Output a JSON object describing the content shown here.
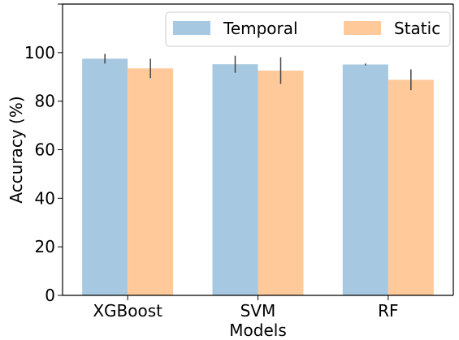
{
  "chart_data": {
    "type": "bar",
    "categories": [
      "XGBoost",
      "SVM",
      "RF"
    ],
    "series": [
      {
        "name": "Temporal",
        "values": [
          97.5,
          95.2,
          95.1
        ],
        "errors": [
          2.0,
          3.5,
          0.4
        ],
        "color": "#a6c8e0"
      },
      {
        "name": "Static",
        "values": [
          93.5,
          92.6,
          88.8
        ],
        "errors": [
          4.0,
          5.5,
          4.3
        ],
        "color": "#ffc999"
      }
    ],
    "title": "",
    "xlabel": "Models",
    "ylabel": "Accuracy (%)",
    "ylim": [
      0,
      120
    ],
    "yticks": [
      0,
      20,
      40,
      60,
      80,
      100,
      120
    ],
    "ytick_labels": [
      "0",
      "20",
      "40",
      "60",
      "80",
      "100",
      ""
    ],
    "legend_position": "top-right",
    "grid": false
  }
}
